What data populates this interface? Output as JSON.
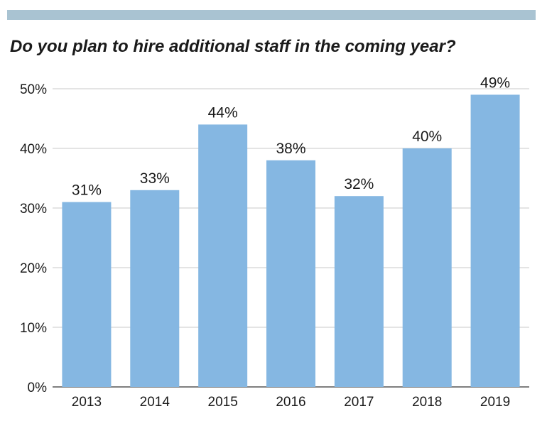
{
  "colors": {
    "top_bar": "#a9c3d2",
    "bar": "#85b7e2",
    "grid": "#c8c8c8",
    "axis": "#555555",
    "text": "#1a1a1a"
  },
  "chart_data": {
    "type": "bar",
    "title": "Do you plan to hire additional staff in the coming year?",
    "xlabel": "",
    "ylabel": "",
    "categories": [
      "2013",
      "2014",
      "2015",
      "2016",
      "2017",
      "2018",
      "2019"
    ],
    "values": [
      31,
      33,
      44,
      38,
      32,
      40,
      49
    ],
    "value_labels": [
      "31%",
      "33%",
      "44%",
      "38%",
      "32%",
      "40%",
      "49%"
    ],
    "ylim": [
      0,
      50
    ],
    "yticks": [
      0,
      10,
      20,
      30,
      40,
      50
    ],
    "ytick_labels": [
      "0%",
      "10%",
      "20%",
      "30%",
      "40%",
      "50%"
    ],
    "grid": true,
    "legend": "none"
  }
}
